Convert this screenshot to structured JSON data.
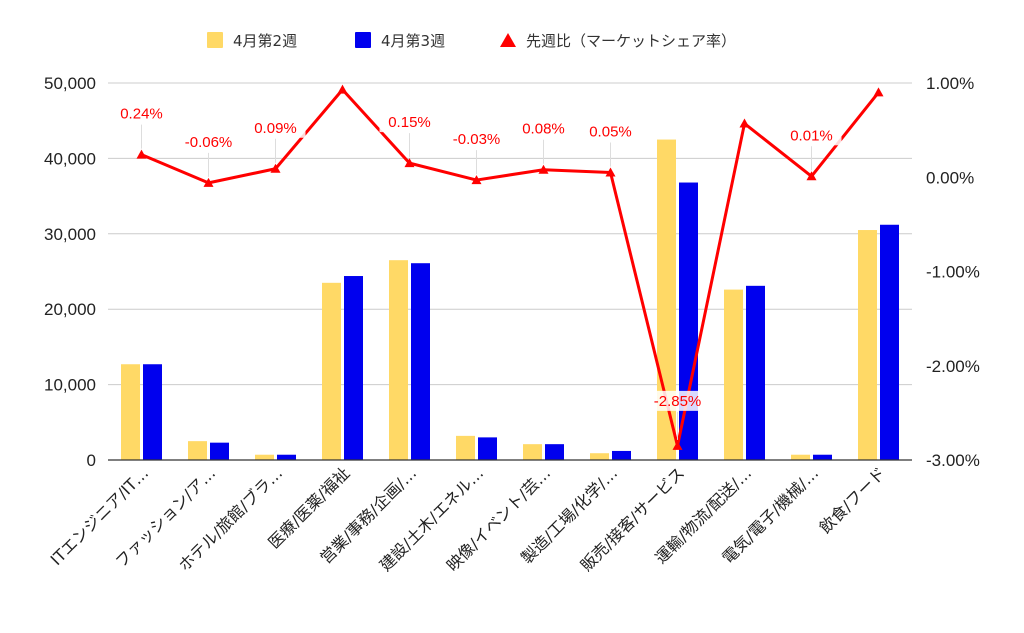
{
  "chart_data": {
    "type": "bar",
    "categories": [
      "ITエンジニア/IT…",
      "ファッション/ア…",
      "ホテル/旅館/ブラ…",
      "医療/医薬/福祉",
      "営業/事務/企画/…",
      "建設/土木/エネル…",
      "映像/イベント/芸…",
      "製造/工場/化学/…",
      "販売/接客/サービス",
      "運輸/物流/配送/…",
      "電気/電子/機械/…",
      "飲食/フード"
    ],
    "series": [
      {
        "name": "4月第2週",
        "type": "bar",
        "axis": "left",
        "color": "#FFD966",
        "values": [
          12700,
          2500,
          700,
          23500,
          26500,
          3200,
          2100,
          900,
          42500,
          22600,
          700,
          30500
        ]
      },
      {
        "name": "4月第3週",
        "type": "bar",
        "axis": "left",
        "color": "#0000EE",
        "values": [
          12700,
          2300,
          700,
          24400,
          26100,
          3000,
          2100,
          1200,
          36800,
          23100,
          700,
          31200
        ]
      },
      {
        "name": "先週比（マーケットシェア率）",
        "type": "line",
        "axis": "right",
        "color": "#FF0000",
        "marker": "triangle",
        "values": [
          0.24,
          -0.06,
          0.09,
          0.93,
          0.15,
          -0.03,
          0.08,
          0.05,
          -2.85,
          0.57,
          0.01,
          0.9
        ],
        "labels": [
          "0.24%",
          "-0.06%",
          "0.09%",
          "",
          "0.15%",
          "-0.03%",
          "0.08%",
          "0.05%",
          "-2.85%",
          "",
          "0.01%",
          ""
        ]
      }
    ],
    "y_left": {
      "min": 0,
      "max": 50000,
      "ticks": [
        "0",
        "10,000",
        "20,000",
        "30,000",
        "40,000",
        "50,000"
      ]
    },
    "y_right": {
      "min": -3,
      "max": 1,
      "ticks": [
        "-3.00%",
        "-2.00%",
        "-1.00%",
        "0.00%",
        "1.00%"
      ]
    },
    "grid": true,
    "legend_position": "top-center"
  }
}
